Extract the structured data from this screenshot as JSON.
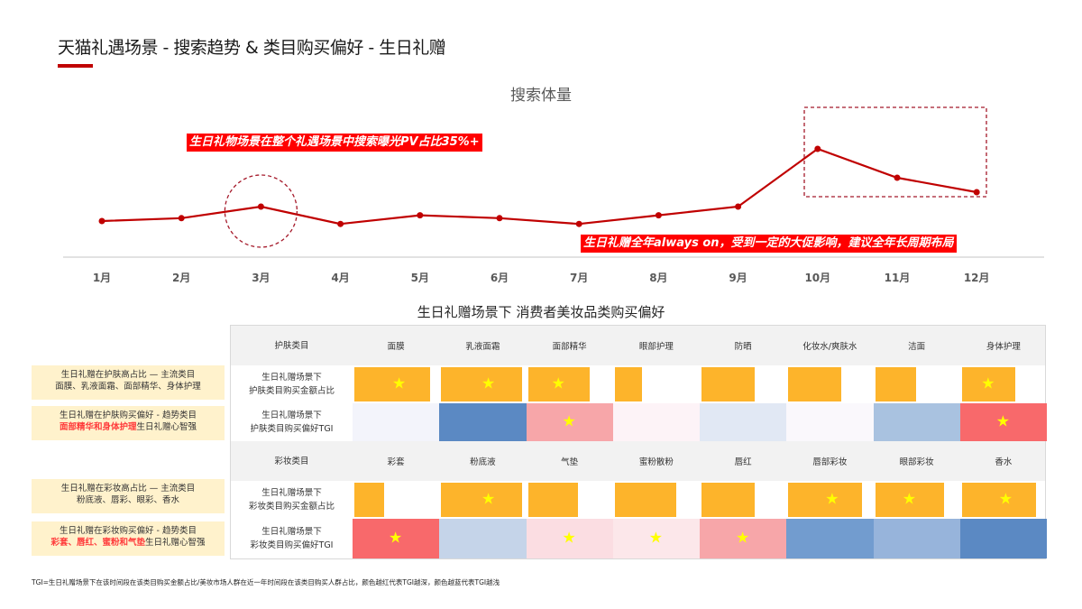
{
  "page": {
    "title": "天猫礼遇场景 - 搜索趋势 & 类目购买偏好 - 生日礼赠",
    "accent_color": "#c00000"
  },
  "chart_data": {
    "type": "line",
    "title": "搜索体量",
    "categories": [
      "1月",
      "2月",
      "3月",
      "4月",
      "5月",
      "6月",
      "7月",
      "8月",
      "9月",
      "10月",
      "11月",
      "12月"
    ],
    "series": [
      {
        "name": "搜索体量",
        "color": "#c00000",
        "values": [
          40,
          44,
          60,
          36,
          48,
          44,
          36,
          48,
          60,
          140,
          100,
          80
        ]
      }
    ],
    "xlabel": "",
    "ylabel": "",
    "y_axis_visible": false,
    "grid": false,
    "annotations": [
      {
        "type": "dashed-circle",
        "target": "3月"
      },
      {
        "type": "dashed-rect",
        "target": [
          "10月",
          "11月",
          "12月"
        ]
      }
    ],
    "callouts": [
      "生日礼物场景在整个礼遇场景中搜索曝光PV占比35%+",
      "生日礼赠全年always on，受到一定的大促影响，建议全年长周期布局"
    ]
  },
  "table": {
    "title": "生日礼赠场景下 消费者美妆品类购买偏好",
    "skincare": {
      "header_label": "护肤类目",
      "categories": [
        "面膜",
        "乳液面霜",
        "面部精华",
        "眼部护理",
        "防晒",
        "化妆水/爽肤水",
        "洁面",
        "身体护理"
      ],
      "share_row_label_1": "生日礼赠场景下",
      "share_row_label_2": "护肤类目购买金额占比",
      "tgi_row_label_1": "生日礼赠场景下",
      "tgi_row_label_2": "护肤类目购买偏好TGI",
      "share_values": [
        0.91,
        0.97,
        0.74,
        0.33,
        0.64,
        0.64,
        0.49,
        0.64
      ],
      "share_stars": [
        true,
        true,
        true,
        false,
        false,
        false,
        false,
        true
      ],
      "tgi_colors": [
        "#f3f4fb",
        "#5b89c3",
        "#f7a6a9",
        "#fdf3f7",
        "#e1e8f4",
        "#faf8fc",
        "#a9c2e0",
        "#f8696b"
      ],
      "tgi_stars": [
        false,
        false,
        true,
        false,
        false,
        false,
        false,
        true
      ],
      "note_share_line1": "生日礼赠在护肤高占比 — 主流类目",
      "note_share_line2": "面膜、乳液面霜、面部精华、身体护理",
      "note_tgi_line1": "生日礼赠在护肤购买偏好 - 趋势类目",
      "note_tgi_highlight": "面部精华和身体护理",
      "note_tgi_tail": "生日礼赠心智强"
    },
    "makeup": {
      "header_label": "彩妆类目",
      "categories": [
        "彩套",
        "粉底液",
        "气垫",
        "蜜粉散粉",
        "唇红",
        "唇部彩妆",
        "眼部彩妆",
        "香水"
      ],
      "share_row_label_1": "生日礼赠场景下",
      "share_row_label_2": "彩妆类目购买金额占比",
      "tgi_row_label_1": "生日礼赠场景下",
      "tgi_row_label_2": "彩妆类目购买偏好TGI",
      "share_values": [
        0.36,
        0.97,
        0.6,
        0.74,
        0.64,
        0.89,
        0.83,
        0.89
      ],
      "share_stars": [
        false,
        true,
        false,
        false,
        false,
        true,
        true,
        true
      ],
      "tgi_colors": [
        "#f8696b",
        "#c5d4e9",
        "#fbdde2",
        "#fce7ea",
        "#f7a6a9",
        "#729ccf",
        "#97b4db",
        "#5b89c3"
      ],
      "tgi_stars": [
        true,
        false,
        true,
        true,
        true,
        false,
        false,
        false
      ],
      "note_share_line1": "生日礼赠在彩妆高占比 — 主流类目",
      "note_share_line2": "粉底液、唇彩、眼彩、香水",
      "note_tgi_line1": "生日礼赠在彩妆购买偏好 - 趋势类目",
      "note_tgi_highlight": "彩套、唇红、蜜粉和气垫",
      "note_tgi_tail": "生日礼赠心智强"
    }
  },
  "footnote": "TGI=生日礼赠场景下在该时间段在该类目购买金额占比/美妆市场人群在近一年时间段在该类目购买人群占比，颜色越红代表TGI越深，颜色越蓝代表TGI越浅",
  "colors": {
    "bar": "#fdb42b",
    "star": "#ffff00",
    "callout_bg": "#ff0000",
    "note_bg": "#fff2cc",
    "line": "#c00000"
  }
}
